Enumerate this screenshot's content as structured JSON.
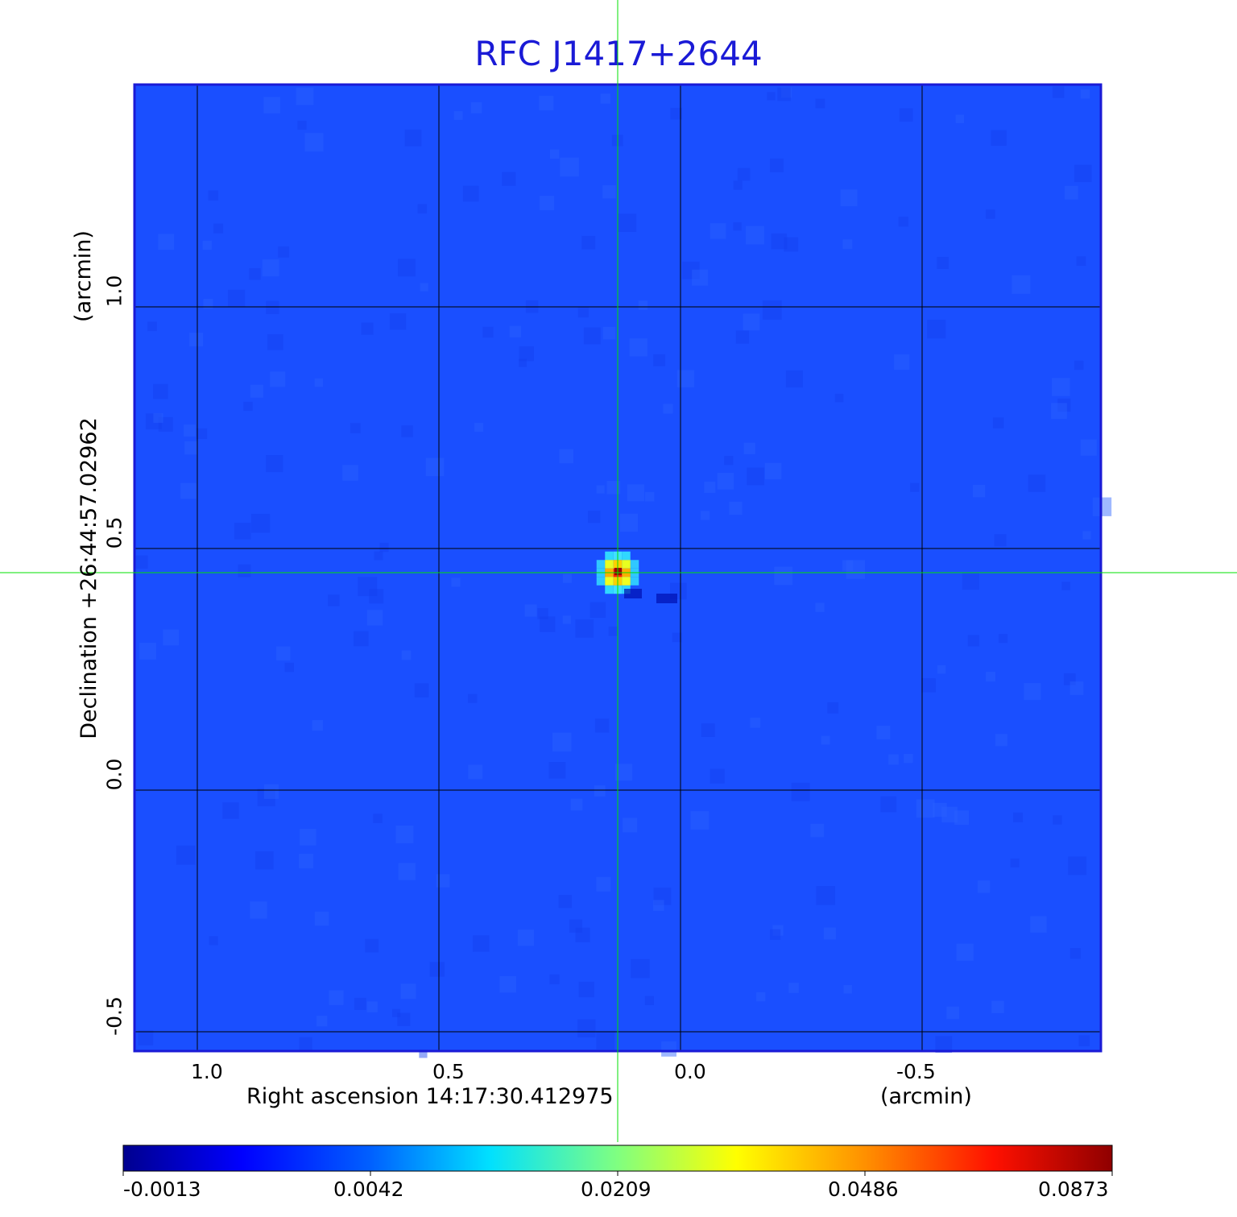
{
  "chart_data": {
    "type": "heatmap",
    "title": "RFC J1417+2644",
    "xlabel": "Right ascension  14:17:30.412975",
    "xunit": "(arcmin)",
    "ylabel": "Declination  +26:44:57.02962",
    "yunit": "(arcmin)",
    "x_ticks": [
      "1.0",
      "0.5",
      "0.0",
      "-0.5"
    ],
    "x_tick_values": [
      1.0,
      0.5,
      0.0,
      -0.5
    ],
    "y_ticks": [
      "1.0",
      "0.5",
      "0.0",
      "-0.5"
    ],
    "y_tick_values": [
      1.0,
      0.5,
      0.0,
      -0.5
    ],
    "xlim": [
      1.13,
      -0.87
    ],
    "ylim": [
      -0.54,
      1.46
    ],
    "grid": true,
    "crosshair": {
      "x": 0.13,
      "y": 0.45,
      "color": "#00e000"
    },
    "peak": {
      "x": 0.13,
      "y": 0.45,
      "value": 0.0873
    },
    "colorbar": {
      "ticks": [
        "-0.0013",
        "0.0042",
        "0.0209",
        "0.0486",
        "0.0873"
      ],
      "colormap": "jet",
      "placement": "bottom"
    },
    "colors": {
      "background": "#1a4fff",
      "frame": "#1a1ad6"
    }
  }
}
